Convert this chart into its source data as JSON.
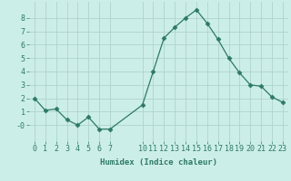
{
  "x": [
    0,
    1,
    2,
    3,
    4,
    5,
    6,
    7,
    10,
    11,
    12,
    13,
    14,
    15,
    16,
    17,
    18,
    19,
    20,
    21,
    22,
    23
  ],
  "y": [
    2.0,
    1.1,
    1.2,
    0.4,
    0.0,
    0.6,
    -0.3,
    -0.3,
    1.5,
    4.0,
    6.5,
    7.3,
    8.0,
    8.6,
    7.6,
    6.4,
    5.0,
    3.9,
    3.0,
    2.9,
    2.1,
    1.7
  ],
  "line_color": "#2d7a65",
  "marker": "D",
  "marker_size": 2.5,
  "bg_color": "#cceee8",
  "grid_color": "#aed4cc",
  "xlabel": "Humidex (Indice chaleur)",
  "xlim": [
    -0.5,
    23.5
  ],
  "ylim": [
    -1.2,
    9.2
  ],
  "yticks": [
    0,
    1,
    2,
    3,
    4,
    5,
    6,
    7,
    8
  ],
  "ytick_labels": [
    "-0",
    "1",
    "2",
    "3",
    "4",
    "5",
    "6",
    "7",
    "8"
  ],
  "xticks": [
    0,
    1,
    2,
    3,
    4,
    5,
    6,
    7,
    10,
    11,
    12,
    13,
    14,
    15,
    16,
    17,
    18,
    19,
    20,
    21,
    22,
    23
  ],
  "tick_color": "#2d7a65",
  "label_fontsize": 6.5,
  "tick_fontsize": 6.0
}
